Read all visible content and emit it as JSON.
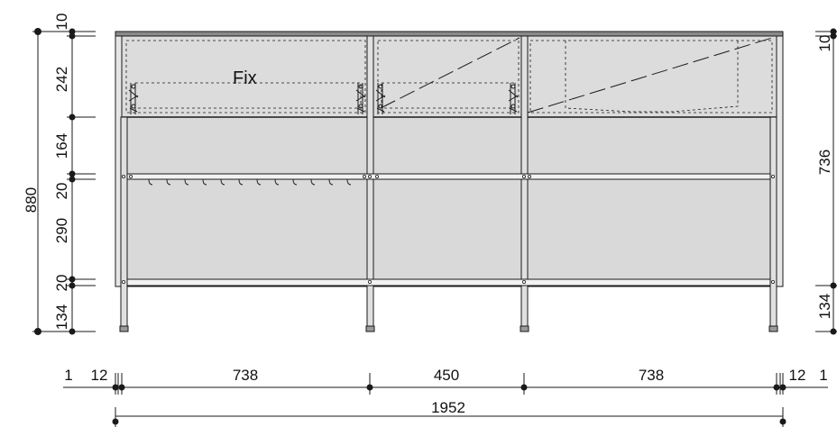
{
  "annotation": {
    "fix_label": "Fix"
  },
  "left_dimensions": {
    "total": "880",
    "segments": [
      "10",
      "242",
      "164",
      "20",
      "290",
      "20",
      "134"
    ]
  },
  "right_dimensions": {
    "segments": [
      "10",
      "736",
      "134"
    ]
  },
  "bottom_dimensions": {
    "segments": [
      "1",
      "12",
      "738",
      "450",
      "738",
      "12",
      "1"
    ],
    "total": "1952"
  },
  "colors": {
    "panel_fill": "#d9d9d9",
    "line": "#1a1a1a",
    "frame": "#555555"
  }
}
